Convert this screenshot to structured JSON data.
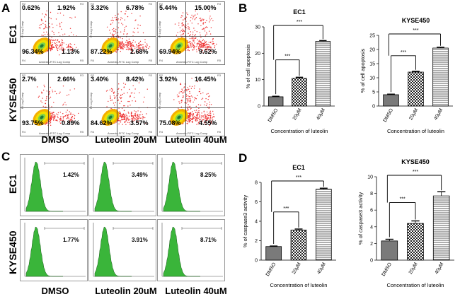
{
  "panel_letters": {
    "A": "A",
    "B": "B",
    "C": "C",
    "D": "D"
  },
  "row_labels": {
    "ec1": "EC1",
    "kyse": "KYSE450"
  },
  "col_labels": [
    "DMSO",
    "Luteolin 20uM",
    "Luteolin 40uM"
  ],
  "flow_axes": {
    "y": "PI Log Comp",
    "x": "Annexin-FITC Log Comp",
    "region_labels": [
      "R2",
      "R3",
      "R4",
      "R5"
    ]
  },
  "flow_plots": [
    {
      "cell": "EC1",
      "treatment": "DMSO",
      "q": [
        "0.62%",
        "1.92%",
        "96.34%",
        "1.13%"
      ]
    },
    {
      "cell": "EC1",
      "treatment": "Luteolin 20uM",
      "q": [
        "3.32%",
        "6.78%",
        "87.22%",
        "2.68%"
      ]
    },
    {
      "cell": "EC1",
      "treatment": "Luteolin 40uM",
      "q": [
        "5.44%",
        "15.00%",
        "69.94%",
        "9.62%"
      ]
    },
    {
      "cell": "KYSE450",
      "treatment": "DMSO",
      "q": [
        "2.7%",
        "2.66%",
        "93.75%",
        "0.89%"
      ]
    },
    {
      "cell": "KYSE450",
      "treatment": "Luteolin 20uM",
      "q": [
        "3.40%",
        "8.42%",
        "84.62%",
        "3.57%"
      ]
    },
    {
      "cell": "KYSE450",
      "treatment": "Luteolin 40uM",
      "q": [
        "3.92%",
        "16.45%",
        "75.08%",
        "4.55%"
      ]
    }
  ],
  "histograms": [
    {
      "cell": "EC1",
      "treatment": "DMSO",
      "percent": "1.42%"
    },
    {
      "cell": "EC1",
      "treatment": "Luteolin 20uM",
      "percent": "3.49%"
    },
    {
      "cell": "EC1",
      "treatment": "Luteolin 40uM",
      "percent": "8.25%"
    },
    {
      "cell": "KYSE450",
      "treatment": "DMSO",
      "percent": "1.77%"
    },
    {
      "cell": "KYSE450",
      "treatment": "Luteolin 20uM",
      "percent": "3.91%"
    },
    {
      "cell": "KYSE450",
      "treatment": "Luteolin 40uM",
      "percent": "8.71%"
    }
  ],
  "chart_data": [
    {
      "id": "B-EC1",
      "type": "bar",
      "title": "EC1",
      "categories": [
        "DMSO",
        "20μM",
        "40μM"
      ],
      "values": [
        3.5,
        10.5,
        24.5
      ],
      "errors": [
        0.2,
        0.4,
        0.3
      ],
      "ylabel": "% of cell apoptosis",
      "xlabel": "Concentration of luteolin",
      "ylim": [
        0,
        30
      ],
      "yticks": [
        0,
        10,
        20,
        30
      ],
      "significance": [
        "***",
        "***"
      ]
    },
    {
      "id": "B-KYSE450",
      "type": "bar",
      "title": "KYSE450",
      "categories": [
        "DMSO",
        "20μM",
        "40μM"
      ],
      "values": [
        4.0,
        12.0,
        20.5
      ],
      "errors": [
        0.2,
        0.3,
        0.3
      ],
      "ylabel": "% of cell apoptosis",
      "xlabel": "Concentration of luteolin",
      "ylim": [
        0,
        25
      ],
      "yticks": [
        0,
        5,
        10,
        15,
        20,
        25
      ],
      "significance": [
        "***",
        "***"
      ]
    },
    {
      "id": "D-EC1",
      "type": "bar",
      "title": "EC1",
      "categories": [
        "DMSO",
        "20μM",
        "40μM"
      ],
      "values": [
        1.4,
        3.1,
        7.3
      ],
      "errors": [
        0.05,
        0.1,
        0.1
      ],
      "ylabel": "% of caspase3 activity",
      "xlabel": "Concentration of luteolin",
      "ylim": [
        0,
        8
      ],
      "yticks": [
        0,
        2,
        4,
        6,
        8
      ],
      "significance": [
        "***",
        "***"
      ]
    },
    {
      "id": "D-KYSE450",
      "type": "bar",
      "title": "KYSE450",
      "categories": [
        "DMSO",
        "20μM",
        "40μM"
      ],
      "values": [
        2.3,
        4.4,
        7.7
      ],
      "errors": [
        0.2,
        0.3,
        0.5
      ],
      "ylabel": "% of caspase3 activity",
      "xlabel": "Concentration of luteolin",
      "ylim": [
        0,
        10
      ],
      "yticks": [
        0,
        2,
        4,
        6,
        8,
        10
      ],
      "significance": [
        "***",
        "***"
      ]
    }
  ]
}
